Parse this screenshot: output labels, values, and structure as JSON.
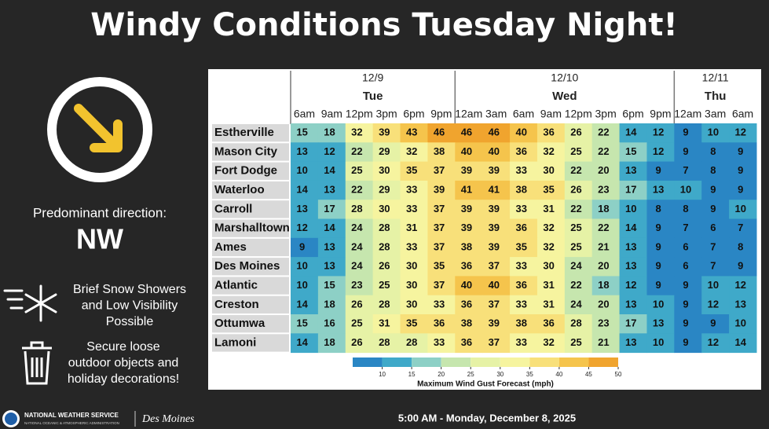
{
  "title": "Windy Conditions Tuesday Night!",
  "sidebar": {
    "direction_label": "Predominant direction:",
    "direction": "NW",
    "snow_note": [
      "Brief Snow Showers",
      "and Low Visibility",
      "Possible"
    ],
    "secure_note": [
      "Secure loose",
      "outdoor objects and",
      "holiday decorations!"
    ]
  },
  "table": {
    "groups": [
      {
        "date": "12/9",
        "day": "Tue",
        "times": [
          "6am",
          "9am",
          "12pm",
          "3pm",
          "6pm",
          "9pm"
        ]
      },
      {
        "date": "12/10",
        "day": "Wed",
        "times": [
          "12am",
          "3am",
          "6am",
          "9am",
          "12pm",
          "3pm",
          "6pm",
          "9pm"
        ]
      },
      {
        "date": "12/11",
        "day": "Thu",
        "times": [
          "12am",
          "3am",
          "6am"
        ]
      }
    ],
    "rows": [
      {
        "name": "Estherville",
        "values": [
          15,
          18,
          32,
          39,
          43,
          46,
          46,
          46,
          40,
          36,
          26,
          22,
          14,
          12,
          9,
          10,
          12
        ]
      },
      {
        "name": "Mason City",
        "values": [
          13,
          12,
          22,
          29,
          32,
          38,
          40,
          40,
          36,
          32,
          25,
          22,
          15,
          12,
          9,
          8,
          9
        ]
      },
      {
        "name": "Fort Dodge",
        "values": [
          10,
          14,
          25,
          30,
          35,
          37,
          39,
          39,
          33,
          30,
          22,
          20,
          13,
          9,
          7,
          8,
          9
        ]
      },
      {
        "name": "Waterloo",
        "values": [
          14,
          13,
          22,
          29,
          33,
          39,
          41,
          41,
          38,
          35,
          26,
          23,
          17,
          13,
          10,
          9,
          9
        ]
      },
      {
        "name": "Carroll",
        "values": [
          13,
          17,
          28,
          30,
          33,
          37,
          39,
          39,
          33,
          31,
          22,
          18,
          10,
          8,
          8,
          9,
          10
        ]
      },
      {
        "name": "Marshalltown",
        "values": [
          12,
          14,
          24,
          28,
          31,
          37,
          39,
          39,
          36,
          32,
          25,
          22,
          14,
          9,
          7,
          6,
          7
        ]
      },
      {
        "name": "Ames",
        "values": [
          9,
          13,
          24,
          28,
          33,
          37,
          38,
          39,
          35,
          32,
          25,
          21,
          13,
          9,
          6,
          7,
          8
        ]
      },
      {
        "name": "Des Moines",
        "values": [
          10,
          13,
          24,
          26,
          30,
          35,
          36,
          37,
          33,
          30,
          24,
          20,
          13,
          9,
          6,
          7,
          9
        ]
      },
      {
        "name": "Atlantic",
        "values": [
          10,
          15,
          23,
          25,
          30,
          37,
          40,
          40,
          36,
          31,
          22,
          18,
          12,
          9,
          9,
          10,
          12
        ]
      },
      {
        "name": "Creston",
        "values": [
          14,
          18,
          26,
          28,
          30,
          33,
          36,
          37,
          33,
          31,
          24,
          20,
          13,
          10,
          9,
          12,
          13
        ]
      },
      {
        "name": "Ottumwa",
        "values": [
          15,
          16,
          25,
          31,
          35,
          36,
          38,
          39,
          38,
          36,
          28,
          23,
          17,
          13,
          9,
          9,
          10
        ]
      },
      {
        "name": "Lamoni",
        "values": [
          14,
          18,
          26,
          28,
          28,
          33,
          36,
          37,
          33,
          32,
          25,
          21,
          13,
          10,
          9,
          12,
          14
        ]
      }
    ]
  },
  "legend": {
    "title": "Maximum Wind Gust Forecast (mph)",
    "bins": [
      5,
      10,
      15,
      20,
      25,
      30,
      35,
      40,
      45,
      50
    ],
    "colors": [
      "#2a86c4",
      "#3fa9c9",
      "#8dd0c6",
      "#c6e6ae",
      "#e6f2a6",
      "#f6f49f",
      "#f8e07a",
      "#f5c44c",
      "#f0a42e"
    ],
    "ticks": [
      10,
      15,
      20,
      25,
      30,
      35,
      40,
      45,
      50
    ]
  },
  "footer": {
    "agency": "NATIONAL WEATHER SERVICE",
    "parent": "NATIONAL OCEANIC & ATMOSPHERIC ADMINISTRATION",
    "office": "Des Moines",
    "issued": "5:00 AM - Monday, December 8, 2025"
  }
}
